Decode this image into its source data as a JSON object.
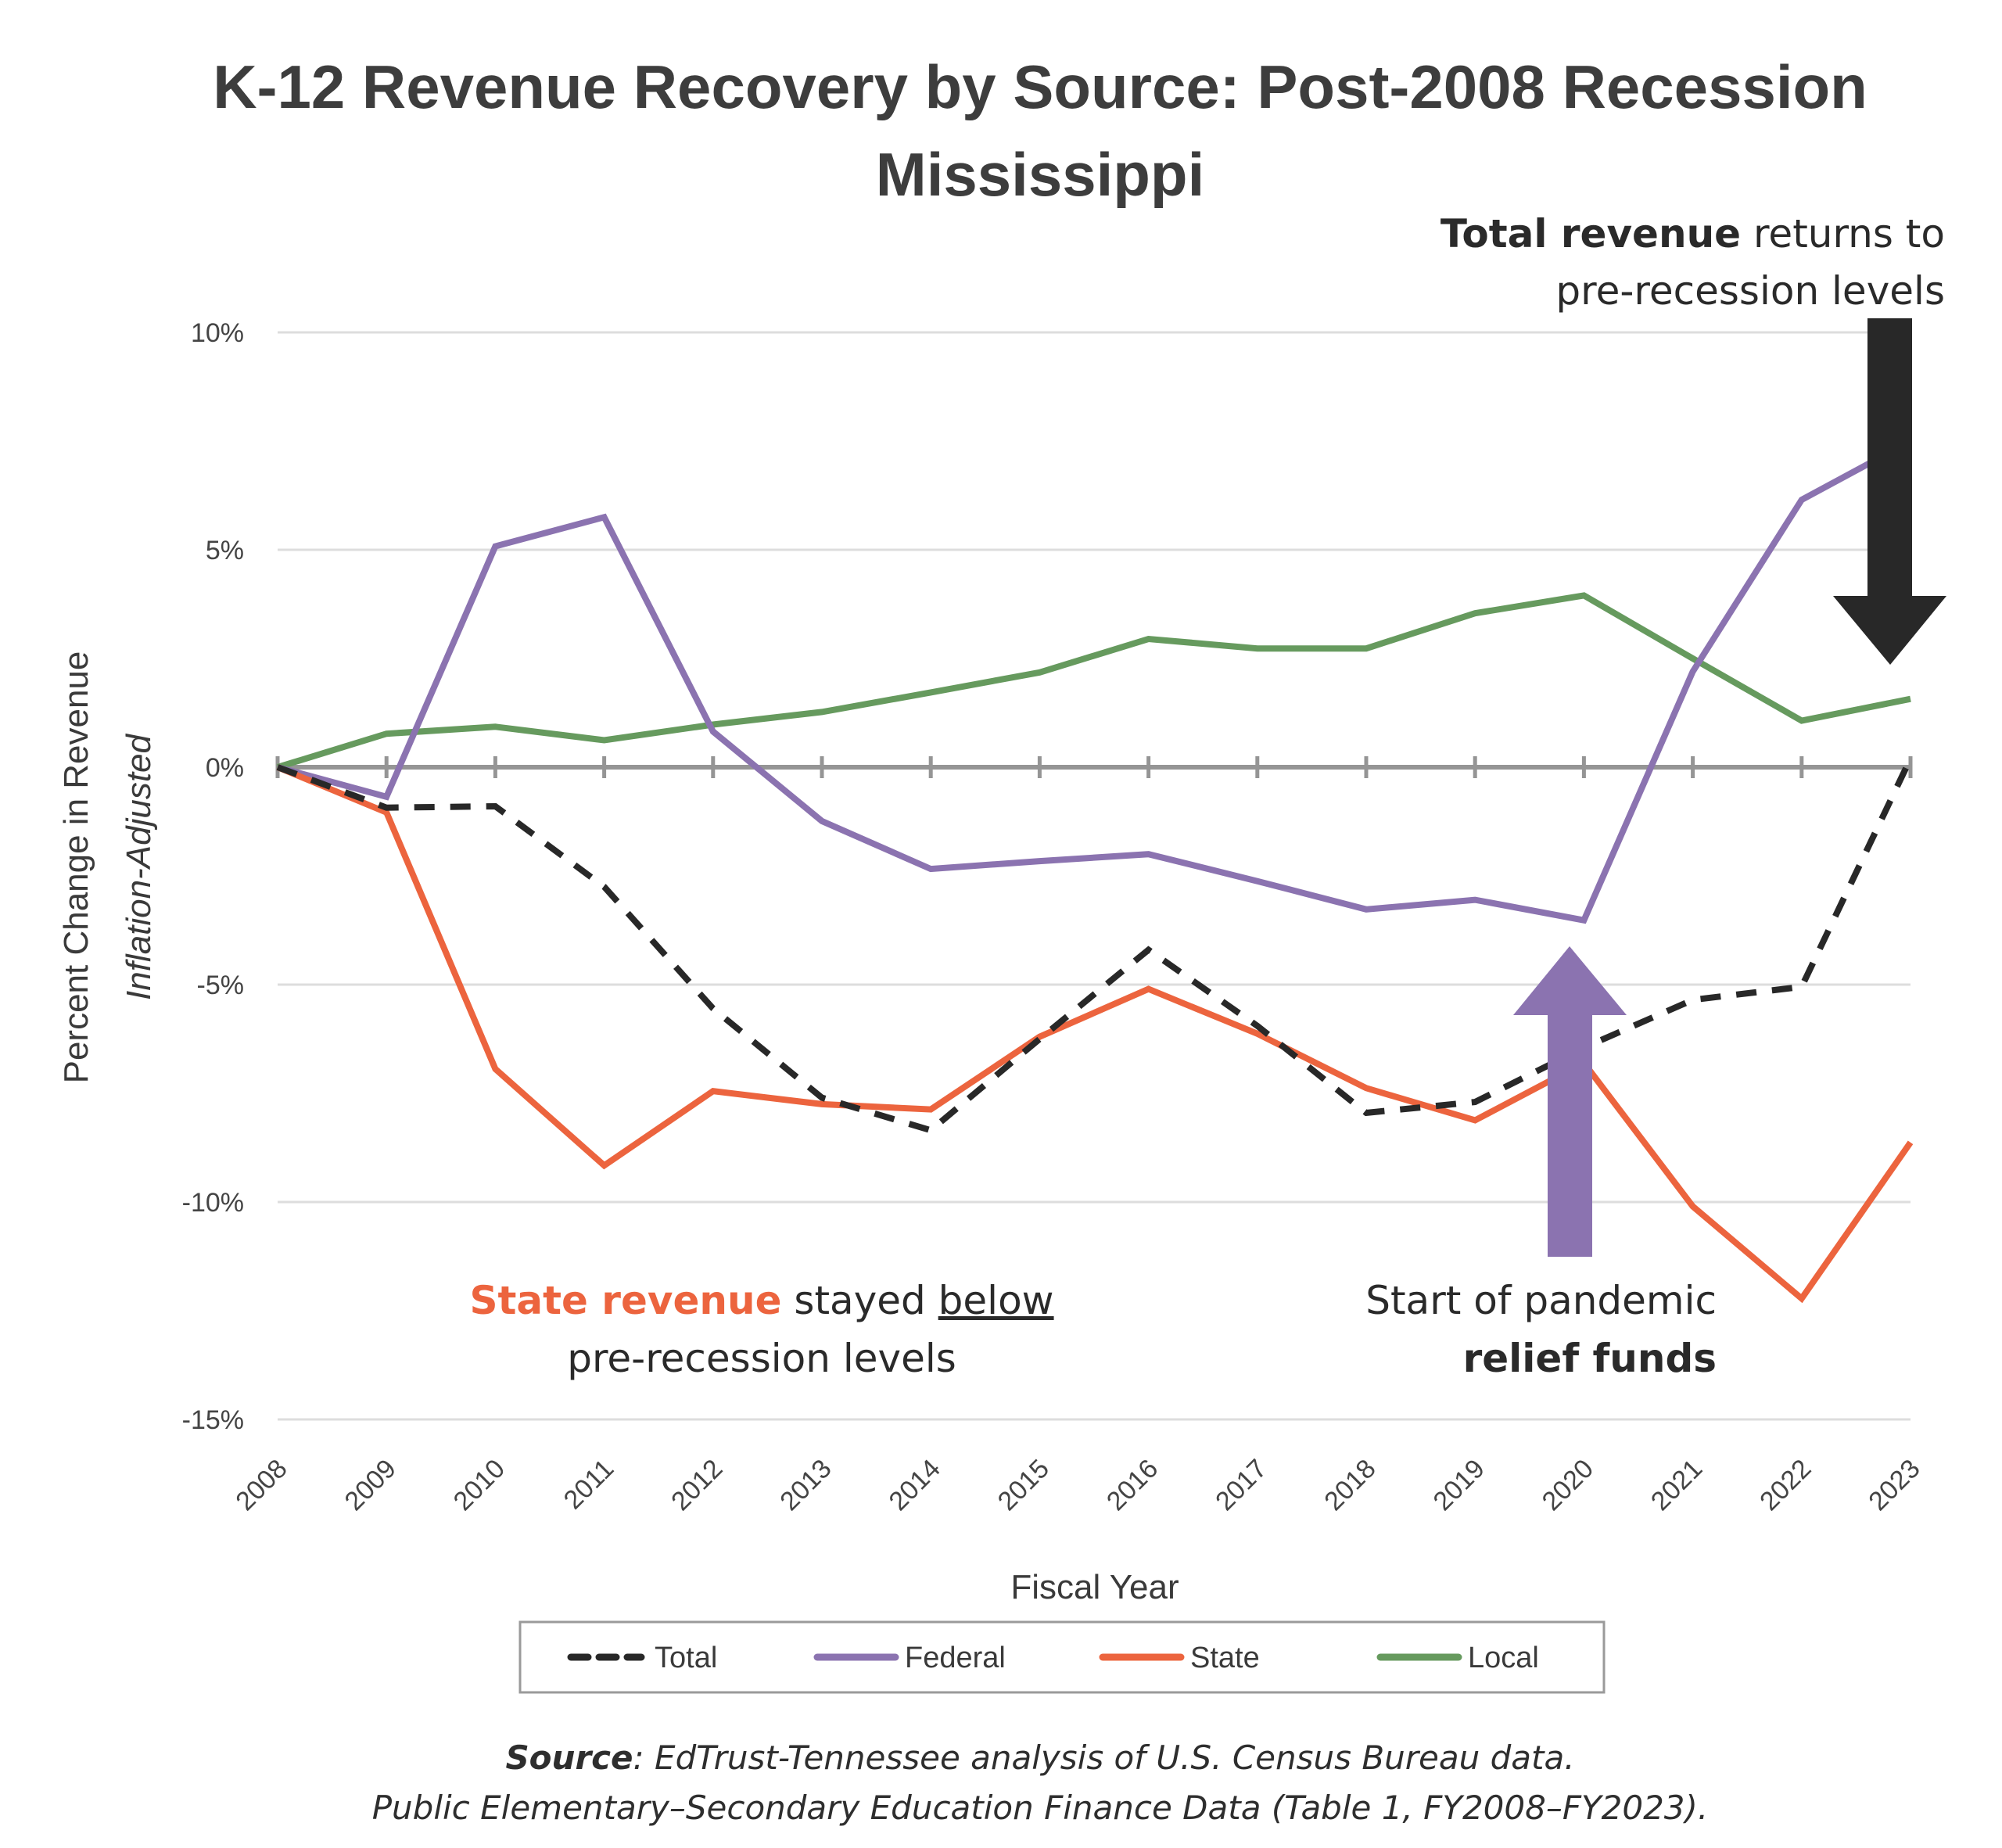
{
  "chart_data": {
    "type": "line",
    "title": "K-12 Revenue Recovery by Source: Post-2008 Recession",
    "subtitle": "Mississippi",
    "xlabel": "Fiscal Year",
    "ylabel": "Percent  Change in Revenue",
    "ylabel_sub": "Inflation-Adjusted",
    "ylim": [
      -15,
      10
    ],
    "yticks": [
      10,
      5,
      0,
      -5,
      -10,
      -15
    ],
    "ytick_labels": [
      "10%",
      "5%",
      "0%",
      "-5%",
      "-10%",
      "-15%"
    ],
    "grid": true,
    "legend_position": "bottom",
    "x": [
      "2008",
      "2009",
      "2010",
      "2011",
      "2012",
      "2013",
      "2014",
      "2015",
      "2016",
      "2017",
      "2018",
      "2019",
      "2020",
      "2021",
      "2022",
      "2023"
    ],
    "series": [
      {
        "name": "Total",
        "color": "#282828",
        "dash": true,
        "values": [
          0,
          -0.93,
          -0.9,
          -2.75,
          -5.55,
          -7.6,
          -8.35,
          -6.25,
          -4.2,
          -5.95,
          -7.95,
          -7.7,
          -6.45,
          -5.35,
          -5.05,
          0.2
        ]
      },
      {
        "name": "Federal",
        "color": "#8b73b0",
        "dash": false,
        "values": [
          0,
          -0.68,
          5.08,
          5.75,
          0.82,
          -1.24,
          -2.34,
          -2.16,
          -2.0,
          -2.62,
          -3.27,
          -3.05,
          -3.52,
          2.2,
          6.15,
          7.5
        ]
      },
      {
        "name": "State",
        "color": "#ec643e",
        "dash": false,
        "values": [
          0,
          -1.04,
          -6.94,
          -9.16,
          -7.45,
          -7.75,
          -7.87,
          -6.2,
          -5.1,
          -6.13,
          -7.38,
          -8.12,
          -6.8,
          -10.1,
          -12.22,
          -8.63
        ]
      },
      {
        "name": "Local",
        "color": "#669a5e",
        "dash": false,
        "values": [
          0,
          0.77,
          0.93,
          0.62,
          0.98,
          1.27,
          1.72,
          2.18,
          2.95,
          2.73,
          2.73,
          3.54,
          3.95,
          2.5,
          1.07,
          1.57
        ]
      }
    ],
    "annotations": [
      {
        "id": "total",
        "bold": "Total revenue",
        "rest": " returns to",
        "line2": "pre-recession levels",
        "arrow": "down",
        "arrow_color": "#282828",
        "points_to_year": "2023"
      },
      {
        "id": "state",
        "bold": "State revenue",
        "rest_a": " stayed ",
        "underlined": "below",
        "line2": "pre-recession levels",
        "bold_color": "#ec643e"
      },
      {
        "id": "pandemic",
        "line1": "Start of pandemic",
        "bold": "relief funds",
        "bold_color": "#8b73b0",
        "arrow": "up",
        "arrow_color": "#8b73b0",
        "points_to_year": "2020"
      }
    ]
  },
  "source": {
    "label": "Source",
    "line1": ": EdTrust-Tennessee analysis of U.S. Census Bureau data.",
    "line2": "Public Elementary–Secondary Education Finance Data (Table 1, FY2008–FY2023)."
  }
}
